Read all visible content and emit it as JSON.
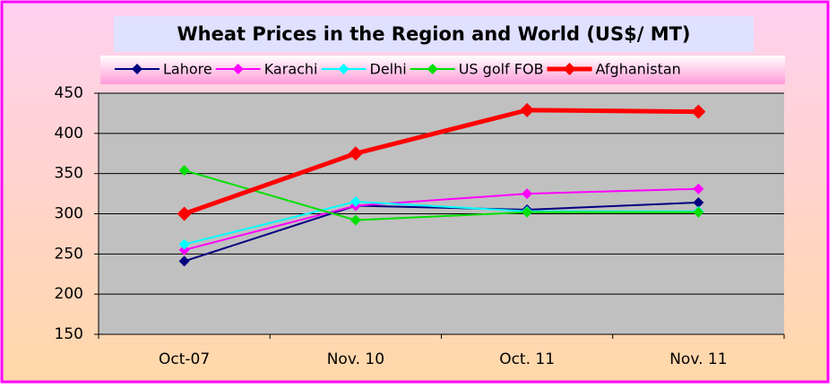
{
  "chart_data": {
    "type": "line",
    "title": "Wheat Prices in the Region and World (US$/ MT)",
    "categories": [
      "Oct-07",
      "Nov. 10",
      "Oct. 11",
      "Nov. 11"
    ],
    "series": [
      {
        "name": "Lahore",
        "color": "#000080",
        "values": [
          241,
          310,
          305,
          314
        ]
      },
      {
        "name": "Karachi",
        "color": "#ff00ff",
        "values": [
          255,
          310,
          325,
          331
        ]
      },
      {
        "name": "Delhi",
        "color": "#00ffff",
        "values": [
          262,
          315,
          303,
          303
        ]
      },
      {
        "name": "US golf FOB",
        "color": "#00e000",
        "values": [
          354,
          292,
          302,
          302
        ]
      },
      {
        "name": "Afghanistan",
        "color": "#ff0000",
        "values": [
          300,
          375,
          429,
          427
        ]
      }
    ],
    "ylim": [
      150,
      450
    ],
    "yticks": [
      150,
      200,
      250,
      300,
      350,
      400,
      450
    ],
    "grid": true
  }
}
